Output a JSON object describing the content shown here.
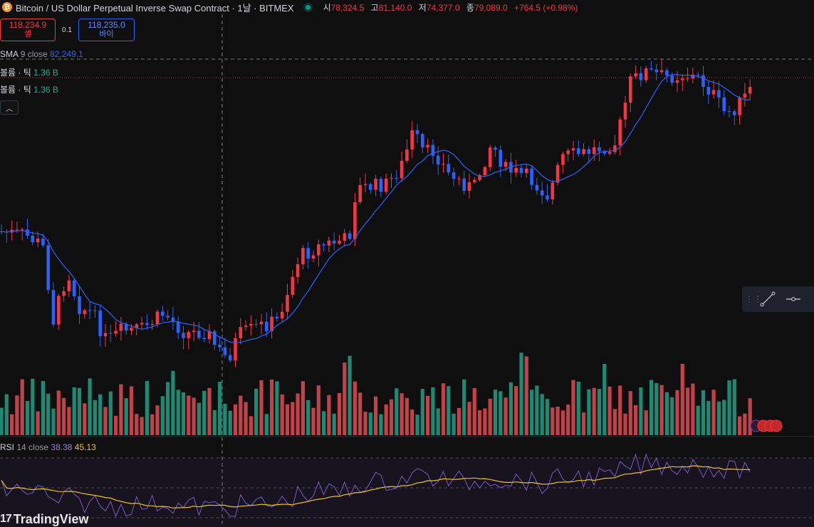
{
  "header": {
    "coin_icon": "bitcoin-icon",
    "title": "Bitcoin / US Dollar Perpetual Inverse Swap Contract · 1날 · BITMEX",
    "ohlc": {
      "o_label": "시",
      "o": "78,324.5",
      "h_label": "고",
      "h": "81,140.0",
      "l_label": "저",
      "l": "74,377.0",
      "c_label": "종",
      "c": "79,089.0",
      "change": "+764.5 (+0.98%)"
    }
  },
  "trade": {
    "sell_price": "118,234.9",
    "sell_label": "셀",
    "spread": "0.1",
    "buy_price": "118,235.0",
    "buy_label": "바이"
  },
  "indicators": {
    "sma": {
      "name": "SMA",
      "params": "9 close",
      "value": "82,249.1"
    },
    "volume1": {
      "name": "볼륨 · 틱",
      "value": "1.36 B"
    },
    "volume2": {
      "name": "볼륨 · 틱",
      "value": "1.36 B"
    },
    "rsi": {
      "name": "RSI",
      "params": "14 close",
      "value1": "38.38",
      "value2": "45.13"
    }
  },
  "colors": {
    "up": "#089981",
    "down": "#f23645",
    "sma": "#2962ff",
    "rsi": "#7e57c2",
    "rsi_ma": "#f0c419"
  },
  "branding": {
    "logo": "TradingView"
  },
  "tool_icons": [
    "trend-line-icon",
    "horizontal-ray-icon"
  ]
}
